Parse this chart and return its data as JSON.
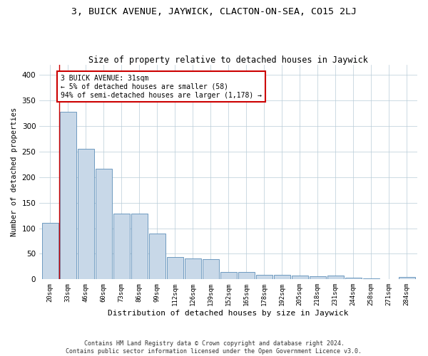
{
  "title": "3, BUICK AVENUE, JAYWICK, CLACTON-ON-SEA, CO15 2LJ",
  "subtitle": "Size of property relative to detached houses in Jaywick",
  "xlabel": "Distribution of detached houses by size in Jaywick",
  "ylabel": "Number of detached properties",
  "categories": [
    "20sqm",
    "33sqm",
    "46sqm",
    "60sqm",
    "73sqm",
    "86sqm",
    "99sqm",
    "112sqm",
    "126sqm",
    "139sqm",
    "152sqm",
    "165sqm",
    "178sqm",
    "192sqm",
    "205sqm",
    "218sqm",
    "231sqm",
    "244sqm",
    "258sqm",
    "271sqm",
    "284sqm"
  ],
  "values": [
    110,
    328,
    255,
    217,
    128,
    128,
    90,
    43,
    41,
    40,
    15,
    15,
    9,
    9,
    7,
    6,
    7,
    3,
    2,
    0,
    5
  ],
  "bar_color": "#c8d8e8",
  "bar_edge_color": "#5b8db8",
  "highlight_color": "#cc0000",
  "annotation_text": "3 BUICK AVENUE: 31sqm\n← 5% of detached houses are smaller (58)\n94% of semi-detached houses are larger (1,178) →",
  "annotation_box_color": "#ffffff",
  "annotation_box_edge": "#cc0000",
  "footer": "Contains HM Land Registry data © Crown copyright and database right 2024.\nContains public sector information licensed under the Open Government Licence v3.0.",
  "ylim": [
    0,
    420
  ],
  "yticks": [
    0,
    50,
    100,
    150,
    200,
    250,
    300,
    350,
    400
  ],
  "background_color": "#ffffff",
  "grid_color": "#b8ccd8"
}
